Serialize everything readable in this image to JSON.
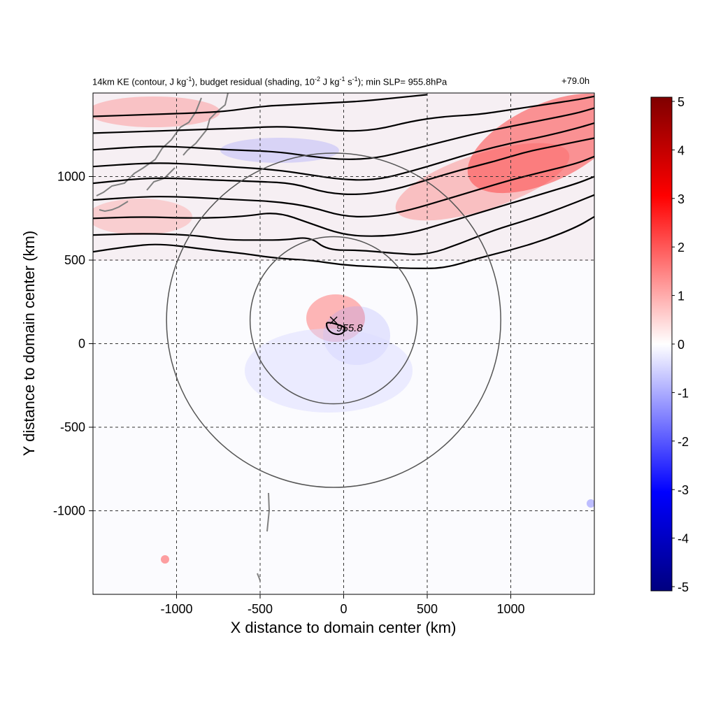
{
  "chart_data": {
    "type": "heatmap",
    "title_segments": [
      "14km KE (contour, J kg",
      "-1",
      "), budget residual (shading, 10",
      "-2",
      " J kg",
      "-1",
      " s",
      "-1",
      "); min SLP= 955.8hPa"
    ],
    "time_label": "+79.0h",
    "xlabel": "X distance to domain center (km)",
    "ylabel": "Y distance to domain center (km)",
    "xlim": [
      -1500,
      1500
    ],
    "ylim": [
      -1500,
      1500
    ],
    "x_ticks": [
      -1000,
      -500,
      0,
      500,
      1000
    ],
    "y_ticks": [
      -1000,
      -500,
      0,
      500,
      1000
    ],
    "x_tick_labels": [
      "-1000",
      "-500",
      "0",
      "500",
      "1000"
    ],
    "y_tick_labels": [
      "-1000",
      "-500",
      "0",
      "500",
      "1000"
    ],
    "grid": true,
    "colorbar": {
      "min": -5,
      "max": 5,
      "ticks": [
        5,
        4,
        3,
        2,
        1,
        0,
        -1,
        -2,
        -3,
        -4,
        -5
      ],
      "tick_labels": [
        "5",
        "4",
        "3",
        "2",
        "1",
        "0",
        "-1",
        "-2",
        "-3",
        "-4",
        "-5"
      ],
      "colors": [
        "#00007f",
        "#0000ff",
        "#ffffff",
        "#ff0000",
        "#7f0000"
      ]
    },
    "storm_center": {
      "x": -60,
      "y": 140,
      "label": "955.8"
    },
    "range_rings_km": [
      500,
      1000
    ],
    "ke_contours": [
      [
        [
          -1500,
          550
        ],
        [
          -1300,
          580
        ],
        [
          -1100,
          600
        ],
        [
          -800,
          560
        ],
        [
          -600,
          540
        ],
        [
          -400,
          510
        ],
        [
          -200,
          500
        ],
        [
          0,
          470
        ],
        [
          200,
          460
        ],
        [
          400,
          450
        ],
        [
          600,
          450
        ],
        [
          800,
          510
        ],
        [
          1000,
          560
        ],
        [
          1200,
          620
        ],
        [
          1400,
          700
        ],
        [
          1500,
          760
        ]
      ],
      [
        [
          -1500,
          650
        ],
        [
          -1200,
          660
        ],
        [
          -900,
          650
        ],
        [
          -700,
          620
        ],
        [
          -500,
          620
        ],
        [
          -350,
          620
        ],
        [
          -200,
          640
        ],
        [
          -100,
          560
        ],
        [
          100,
          560
        ],
        [
          300,
          540
        ],
        [
          500,
          530
        ],
        [
          700,
          600
        ],
        [
          900,
          680
        ],
        [
          1100,
          740
        ],
        [
          1300,
          810
        ],
        [
          1500,
          890
        ]
      ],
      [
        [
          -1500,
          750
        ],
        [
          -1200,
          760
        ],
        [
          -900,
          750
        ],
        [
          -600,
          760
        ],
        [
          -400,
          790
        ],
        [
          -200,
          720
        ],
        [
          0,
          650
        ],
        [
          200,
          640
        ],
        [
          400,
          660
        ],
        [
          600,
          720
        ],
        [
          800,
          780
        ],
        [
          1000,
          840
        ],
        [
          1200,
          900
        ],
        [
          1400,
          960
        ],
        [
          1500,
          1000
        ]
      ],
      [
        [
          -1500,
          860
        ],
        [
          -1200,
          880
        ],
        [
          -1000,
          880
        ],
        [
          -800,
          870
        ],
        [
          -600,
          860
        ],
        [
          -400,
          850
        ],
        [
          -200,
          820
        ],
        [
          0,
          760
        ],
        [
          200,
          760
        ],
        [
          400,
          800
        ],
        [
          600,
          860
        ],
        [
          800,
          920
        ],
        [
          1000,
          980
        ],
        [
          1200,
          1030
        ],
        [
          1400,
          1080
        ],
        [
          1500,
          1120
        ]
      ],
      [
        [
          -1500,
          960
        ],
        [
          -1200,
          990
        ],
        [
          -1000,
          990
        ],
        [
          -800,
          980
        ],
        [
          -500,
          970
        ],
        [
          -300,
          960
        ],
        [
          -100,
          900
        ],
        [
          100,
          890
        ],
        [
          300,
          920
        ],
        [
          500,
          980
        ],
        [
          700,
          1040
        ],
        [
          900,
          1090
        ],
        [
          1100,
          1150
        ],
        [
          1300,
          1190
        ],
        [
          1500,
          1230
        ]
      ],
      [
        [
          -1500,
          1060
        ],
        [
          -1200,
          1080
        ],
        [
          -1000,
          1080
        ],
        [
          -700,
          1060
        ],
        [
          -400,
          1040
        ],
        [
          -200,
          1010
        ],
        [
          0,
          980
        ],
        [
          200,
          980
        ],
        [
          400,
          1030
        ],
        [
          600,
          1090
        ],
        [
          800,
          1150
        ],
        [
          1000,
          1200
        ],
        [
          1200,
          1240
        ],
        [
          1400,
          1290
        ],
        [
          1500,
          1320
        ]
      ],
      [
        [
          -1500,
          1160
        ],
        [
          -1200,
          1180
        ],
        [
          -1000,
          1180
        ],
        [
          -700,
          1160
        ],
        [
          -400,
          1150
        ],
        [
          -200,
          1120
        ],
        [
          0,
          1100
        ],
        [
          200,
          1110
        ],
        [
          400,
          1160
        ],
        [
          600,
          1210
        ],
        [
          800,
          1260
        ],
        [
          1000,
          1300
        ],
        [
          1200,
          1340
        ],
        [
          1400,
          1380
        ],
        [
          1500,
          1410
        ]
      ],
      [
        [
          -1500,
          1260
        ],
        [
          -1200,
          1270
        ],
        [
          -900,
          1280
        ],
        [
          -600,
          1290
        ],
        [
          -400,
          1300
        ],
        [
          -200,
          1290
        ],
        [
          0,
          1270
        ],
        [
          200,
          1280
        ],
        [
          400,
          1330
        ],
        [
          600,
          1360
        ],
        [
          800,
          1370
        ],
        [
          1000,
          1400
        ],
        [
          1200,
          1430
        ],
        [
          1400,
          1460
        ],
        [
          1500,
          1480
        ]
      ],
      [
        [
          -1500,
          1360
        ],
        [
          -1200,
          1370
        ],
        [
          -900,
          1380
        ],
        [
          -700,
          1390
        ],
        [
          -500,
          1420
        ],
        [
          -300,
          1430
        ],
        [
          -100,
          1440
        ],
        [
          100,
          1450
        ],
        [
          300,
          1470
        ],
        [
          500,
          1490
        ]
      ]
    ]
  }
}
